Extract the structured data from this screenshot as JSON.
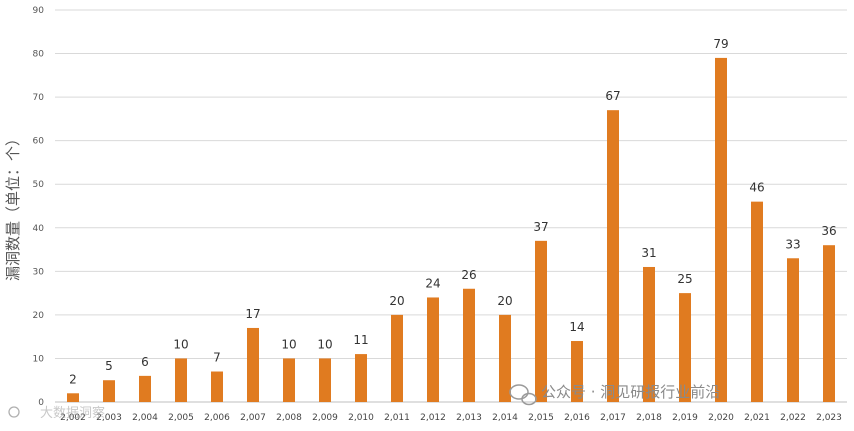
{
  "chart_data": {
    "type": "bar",
    "categories": [
      "2,002",
      "2,003",
      "2,004",
      "2,005",
      "2,006",
      "2,007",
      "2,008",
      "2,009",
      "2,010",
      "2,011",
      "2,012",
      "2,013",
      "2,014",
      "2,015",
      "2,016",
      "2,017",
      "2,018",
      "2,019",
      "2,020",
      "2,021",
      "2,022",
      "2,023"
    ],
    "values": [
      2,
      5,
      6,
      10,
      7,
      17,
      10,
      10,
      11,
      20,
      24,
      26,
      20,
      37,
      14,
      67,
      31,
      25,
      79,
      46,
      33,
      36
    ],
    "ylabel": "漏洞数量（单位：个）",
    "ylim": [
      0,
      90
    ],
    "yticks": [
      0,
      10,
      20,
      30,
      40,
      50,
      60,
      70,
      80,
      90
    ],
    "grid": true,
    "bar_color": "#E07B20"
  },
  "watermarks": {
    "wechat": "公众号 · 洞见研报行业前沿",
    "corner": "大数据洞察"
  }
}
